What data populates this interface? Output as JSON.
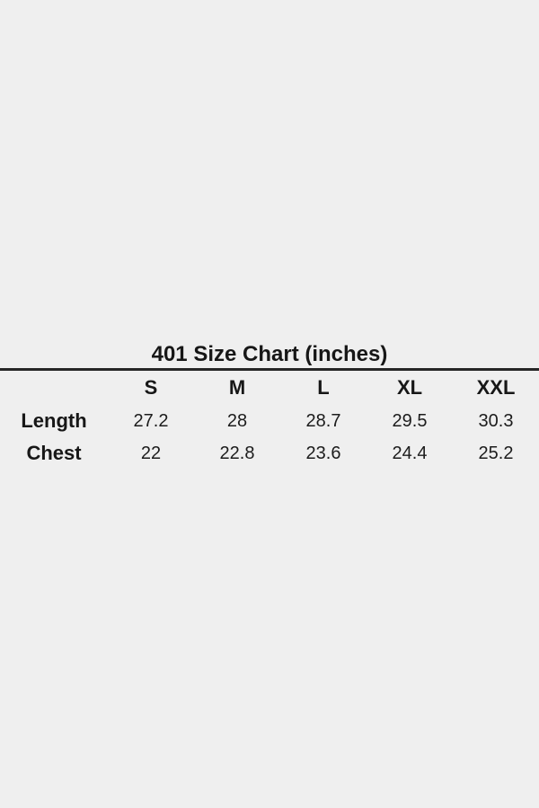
{
  "page": {
    "background_color": "#efefef",
    "text_color": "#1a1a1a",
    "rule_color": "#262626"
  },
  "chart_data": {
    "type": "table",
    "title": "401 Size Chart (inches)",
    "columns": [
      "S",
      "M",
      "L",
      "XL",
      "XXL"
    ],
    "rows": [
      {
        "label": "Length",
        "values": [
          "27.2",
          "28",
          "28.7",
          "29.5",
          "30.3"
        ]
      },
      {
        "label": "Chest",
        "values": [
          "22",
          "22.8",
          "23.6",
          "24.4",
          "25.2"
        ]
      }
    ]
  }
}
